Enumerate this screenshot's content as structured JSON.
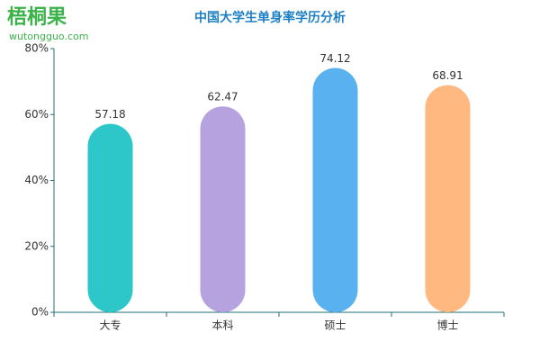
{
  "chart_data": {
    "type": "bar",
    "title": "中国大学生单身率学历分析",
    "logo": "梧桐果",
    "logo_url": "wutongguo.com",
    "categories": [
      "大专",
      "本科",
      "硕士",
      "博士"
    ],
    "values": [
      57.18,
      62.47,
      74.12,
      68.91
    ],
    "colors": [
      "#2ec7c9",
      "#b6a2de",
      "#5ab1ef",
      "#ffb980"
    ],
    "axis_color": "#1f6f7a",
    "ylim": [
      0,
      80
    ],
    "yticks": [
      {
        "value": 0,
        "label": "0%"
      },
      {
        "value": 20,
        "label": "20%"
      },
      {
        "value": 40,
        "label": "40%"
      },
      {
        "value": 60,
        "label": "60%"
      },
      {
        "value": 80,
        "label": "80%"
      }
    ]
  }
}
